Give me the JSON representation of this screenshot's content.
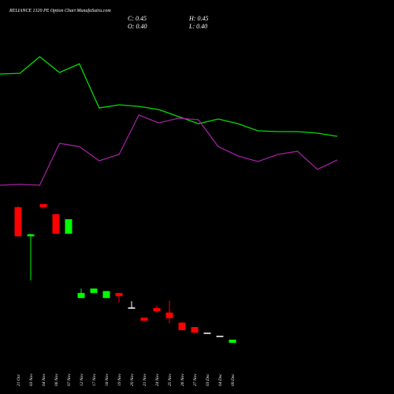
{
  "chart_data": {
    "type": "candlestick",
    "title": "RELIANCE 1320  PE Option  Chart MunafaSutra.com",
    "ohlc_labels": {
      "close": "C: 0.45",
      "high": "H: 0.45",
      "open": "O: 0.40",
      "low": "L: 0.40"
    },
    "categories": [
      "21 Oct",
      "03 Nov",
      "04 Nov",
      "06 Nov",
      "07 Nov",
      "12 Nov",
      "17 Nov",
      "18 Nov",
      "19 Nov",
      "20 Nov",
      "21 Nov",
      "24 Nov",
      "25 Nov",
      "26 Nov",
      "27 Nov",
      "03 Dec",
      "04 Dec",
      "09 Dec"
    ],
    "open": [
      2.55,
      2.09,
      2.6,
      2.44,
      2.13,
      1.11,
      1.19,
      1.11,
      1.19,
      0.96,
      0.8,
      0.95,
      0.88,
      0.72,
      0.65,
      0.56,
      0.51,
      0.4
    ],
    "high": [
      2.57,
      2.13,
      2.6,
      2.45,
      2.36,
      1.26,
      1.26,
      1.22,
      1.19,
      1.06,
      0.8,
      0.99,
      1.07,
      0.72,
      0.65,
      0.56,
      0.51,
      0.45
    ],
    "low": [
      2.09,
      1.39,
      2.52,
      2.13,
      2.13,
      1.11,
      1.19,
      1.11,
      1.04,
      0.94,
      0.75,
      0.88,
      0.71,
      0.6,
      0.56,
      0.56,
      0.51,
      0.4
    ],
    "close": [
      2.09,
      2.12,
      2.55,
      2.13,
      2.36,
      1.19,
      1.26,
      1.22,
      1.14,
      0.96,
      0.75,
      0.9,
      0.79,
      0.6,
      0.56,
      0.56,
      0.51,
      0.45
    ],
    "up_color": "#00ff00",
    "down_color": "#ff0000",
    "flat_color": "#ffffff",
    "lines": [
      {
        "color": "#00dd00",
        "values": [
          206,
          207,
          228,
          208,
          219,
          163,
          167,
          165,
          161,
          152,
          143,
          149,
          143,
          134,
          133,
          133,
          131,
          127
        ]
      },
      {
        "color": "#a020a0",
        "values": [
          65,
          66,
          65,
          118,
          114,
          96,
          104,
          154,
          144,
          150,
          148,
          114,
          102,
          95,
          104,
          108,
          85,
          97
        ]
      }
    ]
  }
}
